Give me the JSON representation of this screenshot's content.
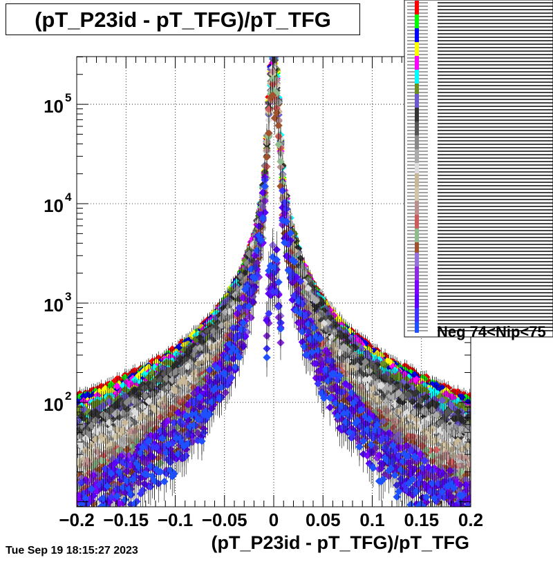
{
  "chart_data": {
    "type": "scatter",
    "title": "(pT_P23id - pT_TFG)/pT_TFG",
    "xlabel": "(pT_P23id - pT_TFG)/pT_TFG",
    "ylabel": "",
    "xlim": [
      -0.2,
      0.2
    ],
    "ylim_log10": [
      0.95,
      5.48
    ],
    "yscale": "log",
    "grid": true,
    "x_ticks": [
      "−0.2",
      "−0.15",
      "−0.1",
      "−0.05",
      "0",
      "0.05",
      "0.1",
      "0.15",
      "0.2"
    ],
    "x_tick_values": [
      -0.2,
      -0.15,
      -0.1,
      -0.05,
      0,
      0.05,
      0.1,
      0.15,
      0.2
    ],
    "y_tick_values": [
      100,
      1000,
      10000,
      100000
    ],
    "y_ticks": [
      {
        "base": "10",
        "exp": "2"
      },
      {
        "base": "10",
        "exp": "3"
      },
      {
        "base": "10",
        "exp": "4"
      },
      {
        "base": "10",
        "exp": "5"
      }
    ],
    "legend_position": "top-right",
    "legend_visible_text": "Neg 74<Nip<75",
    "series": [
      {
        "color": "#ff0000",
        "peak": 280000,
        "tail": 110,
        "sigma": 0.003
      },
      {
        "color": "#00ff00",
        "peak": 260000,
        "tail": 100,
        "sigma": 0.003
      },
      {
        "color": "#0000ff",
        "peak": 240000,
        "tail": 95,
        "sigma": 0.003
      },
      {
        "color": "#ffff00",
        "peak": 220000,
        "tail": 90,
        "sigma": 0.003
      },
      {
        "color": "#ff00ff",
        "peak": 200000,
        "tail": 82,
        "sigma": 0.003
      },
      {
        "color": "#00ffff",
        "peak": 185000,
        "tail": 75,
        "sigma": 0.003
      },
      {
        "color": "#6b8e23",
        "peak": 170000,
        "tail": 68,
        "sigma": 0.003
      },
      {
        "color": "#6a5acd",
        "peak": 160000,
        "tail": 62,
        "sigma": 0.003
      },
      {
        "color": "#333333",
        "peak": 150000,
        "tail": 55,
        "sigma": 0.003
      },
      {
        "color": "#555555",
        "peak": 140000,
        "tail": 48,
        "sigma": 0.003
      },
      {
        "color": "#888888",
        "peak": 130000,
        "tail": 42,
        "sigma": 0.003
      },
      {
        "color": "#aaaaaa",
        "peak": 120000,
        "tail": 36,
        "sigma": 0.003
      },
      {
        "color": "#dddddd",
        "peak": 110000,
        "tail": 30,
        "sigma": 0.003
      },
      {
        "color": "#c8b89a",
        "peak": 100000,
        "tail": 24,
        "sigma": 0.003
      },
      {
        "color": "#d2c6a8",
        "peak": 92000,
        "tail": 20,
        "sigma": 0.003
      },
      {
        "color": "#bc8f8f",
        "peak": 85000,
        "tail": 17,
        "sigma": 0.003
      },
      {
        "color": "#cd5c5c",
        "peak": 78000,
        "tail": 14,
        "sigma": 0.003
      },
      {
        "color": "#8fbc8f",
        "peak": 72000,
        "tail": 12,
        "sigma": 0.003
      },
      {
        "color": "#a0522d",
        "peak": 66000,
        "tail": 11,
        "sigma": 0.003
      },
      {
        "color": "#9370db",
        "peak": 60000,
        "tail": 10,
        "sigma": 0.003
      },
      {
        "color": "#8a2be2",
        "peak": 55000,
        "tail": 9,
        "sigma": 0.003
      },
      {
        "color": "#7b00ff",
        "peak": 50000,
        "tail": 9,
        "sigma": 0.003
      },
      {
        "color": "#5a00ff",
        "peak": 46000,
        "tail": 8,
        "sigma": 0.003
      },
      {
        "color": "#3c32ff",
        "peak": 42000,
        "tail": 8,
        "sigma": 0.003
      },
      {
        "color": "#1e50ff",
        "peak": 38000,
        "tail": 7,
        "sigma": 0.003
      }
    ],
    "colors": {
      "axis": "#000000",
      "grid": "#000000",
      "background": "#ffffff"
    }
  },
  "footer": {
    "timestamp": "Tue Sep 19 18:15:27 2023"
  }
}
